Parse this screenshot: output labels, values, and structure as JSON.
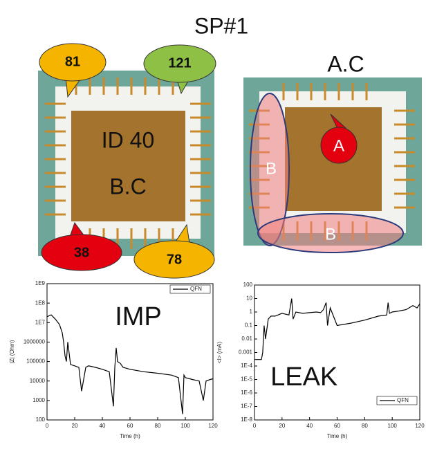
{
  "figure": {
    "title": "SP#1",
    "left_image": {
      "labels": [
        "ID 40",
        "B.C"
      ],
      "callouts": [
        "81",
        "121",
        "38",
        "78"
      ]
    },
    "right_image": {
      "title": "A.C",
      "callouts": [
        "A",
        "B",
        "B"
      ]
    }
  },
  "chart_data": [
    {
      "type": "line",
      "annotation": "IMP",
      "xlabel": "Time (h)",
      "ylabel": "|Z| (Ohm)",
      "log_scale": true,
      "legend": "upper right",
      "x": [
        0,
        3,
        6,
        9,
        11,
        12,
        13,
        14,
        15,
        17,
        20,
        23,
        25,
        28,
        30,
        35,
        40,
        45,
        48,
        49,
        50,
        51,
        53,
        55,
        60,
        70,
        80,
        90,
        95,
        98,
        99,
        100,
        105,
        110,
        113,
        115,
        118,
        120
      ],
      "series": [
        {
          "name": "QFN",
          "color": "#000000",
          "values": [
            20000000,
            25000000,
            15000000,
            8000000,
            3000000,
            1000000,
            200000,
            100000,
            1000000,
            70000,
            60000,
            50000,
            3000,
            50000,
            60000,
            50000,
            40000,
            30000,
            500,
            50000,
            500000,
            100000,
            80000,
            50000,
            40000,
            30000,
            25000,
            20000,
            15000,
            200,
            20000,
            15000,
            12000,
            10000,
            1000,
            10000,
            12000,
            13000
          ]
        }
      ],
      "xlim": [
        0,
        120
      ],
      "xticks": [
        0,
        20,
        40,
        60,
        80,
        100,
        120
      ],
      "ylim": [
        100,
        1000000000
      ],
      "yticks": [
        100,
        1000,
        10000,
        100000,
        1000000,
        {
          "value": 10000000,
          "label": "1E7"
        },
        {
          "value": 100000000,
          "label": "1E8"
        },
        {
          "value": 1000000000,
          "label": "1E9"
        }
      ]
    },
    {
      "type": "line",
      "annotation": "LEAK",
      "xlabel": "Time (h)",
      "ylabel": "<I> (mA)",
      "log_scale": true,
      "legend": "lower right",
      "x": [
        0,
        3,
        5,
        6,
        7,
        8,
        10,
        12,
        15,
        20,
        25,
        27,
        28,
        30,
        35,
        40,
        45,
        48,
        50,
        52,
        53,
        55,
        60,
        70,
        80,
        90,
        96,
        97,
        98,
        100,
        105,
        110,
        115,
        118,
        120
      ],
      "series": [
        {
          "name": "QFN",
          "color": "#000000",
          "values": [
            0.0003,
            0.0003,
            0.0003,
            0.001,
            0.1,
            0.01,
            0.3,
            0.5,
            0.5,
            0.8,
            0.6,
            10,
            0.3,
            1,
            0.8,
            0.9,
            1,
            0.9,
            1.5,
            5,
            0.1,
            2,
            0.1,
            0.15,
            0.25,
            0.5,
            0.6,
            5,
            0.8,
            1,
            1.2,
            1.5,
            3,
            2,
            4
          ]
        }
      ],
      "xlim": [
        0,
        120
      ],
      "xticks": [
        0,
        20,
        40,
        60,
        80,
        100,
        120
      ],
      "ylim": [
        1e-08,
        100
      ],
      "yticks": [
        {
          "value": 1e-08,
          "label": "1E-8"
        },
        {
          "value": 1e-07,
          "label": "1E-7"
        },
        {
          "value": 1e-06,
          "label": "1E-6"
        },
        {
          "value": 1e-05,
          "label": "1E-5"
        },
        {
          "value": 0.0001,
          "label": "1E-4"
        },
        0.001,
        0.01,
        0.1,
        1,
        10,
        100
      ]
    }
  ]
}
